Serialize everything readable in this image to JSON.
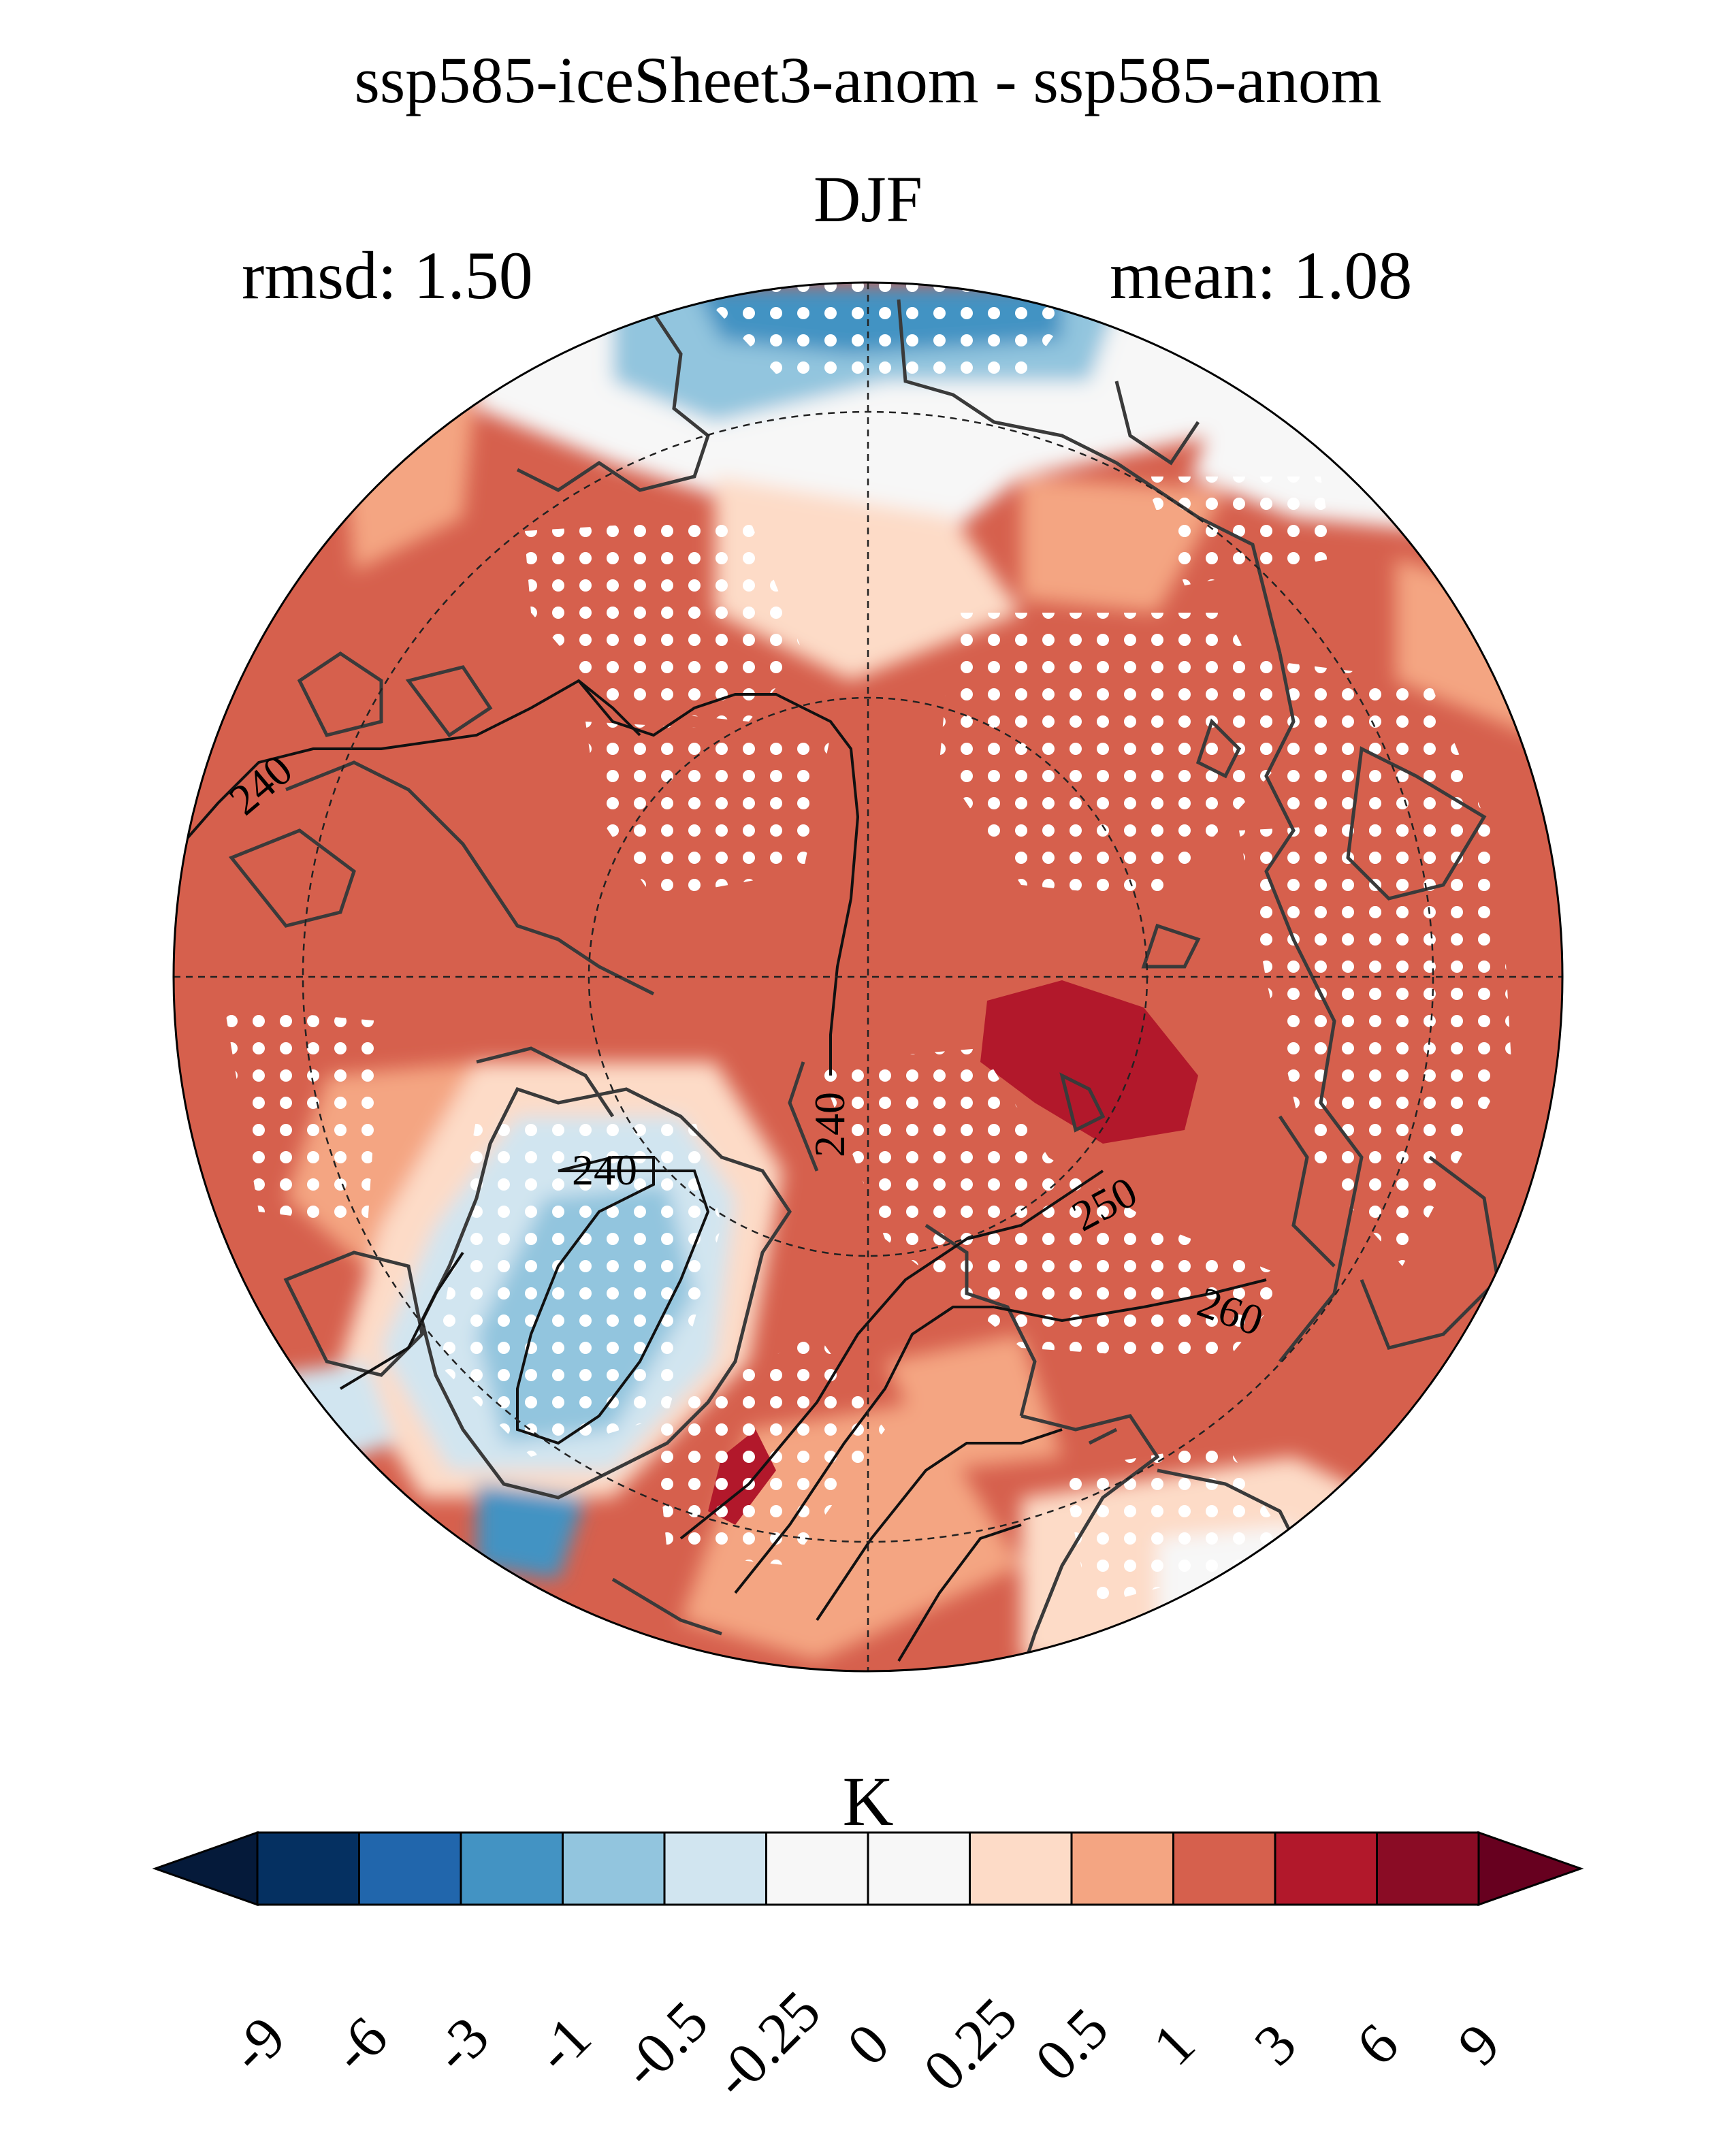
{
  "figure": {
    "title": "ssp585-iceSheet3-anom - ssp585-anom",
    "season": "DJF",
    "rmsd_text": "rmsd: 1.50",
    "mean_text": "mean: 1.08"
  },
  "map": {
    "projection": "north polar stereographic",
    "contour_labels": [
      "240",
      "240",
      "240",
      "250",
      "260"
    ],
    "stippling": "white dots mark regions of significant difference"
  },
  "colorbar": {
    "unit": "K",
    "ticks": [
      "-9",
      "-6",
      "-3",
      "-1",
      "-0.5",
      "-0.25",
      "0",
      "0.25",
      "0.5",
      "1",
      "3",
      "6",
      "9"
    ],
    "colors": [
      "#053061",
      "#2166ac",
      "#4393c3",
      "#92c5de",
      "#d1e5f0",
      "#f7f7f7",
      "#f7f7f7",
      "#fddbc7",
      "#f4a582",
      "#d6604d",
      "#b2182b",
      "#8a0c25"
    ],
    "extend_low_color": "#051a3a",
    "extend_high_color": "#67001f"
  }
}
